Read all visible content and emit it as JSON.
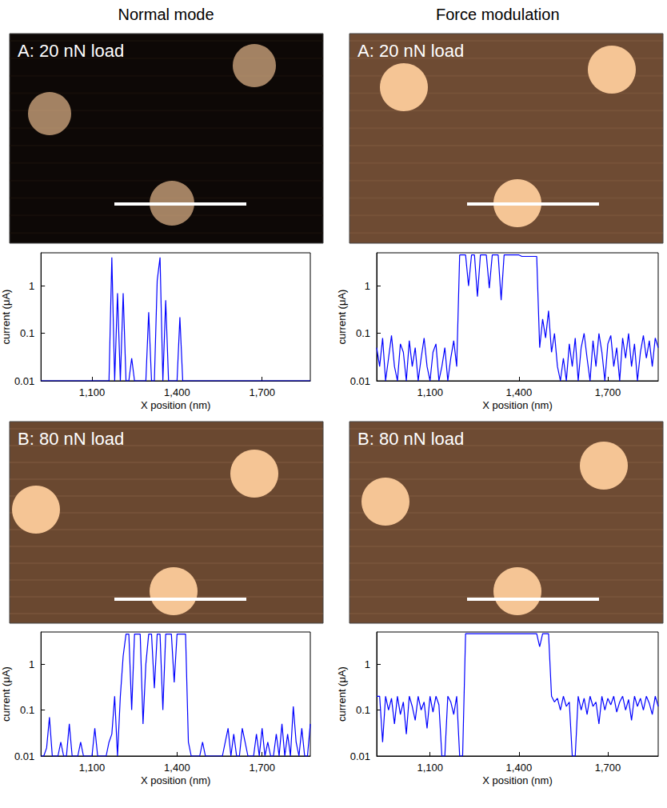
{
  "column_titles": [
    "Normal mode",
    "Force modulation"
  ],
  "chart_data": [
    {
      "type": "line",
      "title": "A: 20 nN load",
      "x_label": "X position (nm)",
      "y_label": "current (μA)",
      "x": [
        920,
        930,
        940,
        950,
        960,
        970,
        980,
        990,
        1000,
        1010,
        1020,
        1030,
        1040,
        1050,
        1060,
        1070,
        1080,
        1090,
        1100,
        1110,
        1120,
        1130,
        1140,
        1150,
        1160,
        1170,
        1180,
        1190,
        1200,
        1210,
        1220,
        1230,
        1240,
        1250,
        1260,
        1270,
        1280,
        1290,
        1300,
        1310,
        1320,
        1330,
        1340,
        1350,
        1360,
        1370,
        1380,
        1390,
        1400,
        1410,
        1420,
        1430,
        1440,
        1450,
        1460,
        1470,
        1480,
        1490,
        1500,
        1510,
        1520,
        1530,
        1540,
        1550,
        1560,
        1570,
        1580,
        1590,
        1600,
        1610,
        1620,
        1630,
        1640,
        1650,
        1660,
        1670,
        1680,
        1690,
        1700,
        1710,
        1720,
        1730,
        1740,
        1750,
        1760,
        1770,
        1780,
        1790,
        1800,
        1810,
        1820,
        1830,
        1840,
        1850,
        1860,
        1870
      ],
      "series": [
        {
          "color": "#0000ff",
          "values": [
            0.01,
            0.01,
            0.01,
            0.01,
            0.01,
            0.01,
            0.01,
            0.01,
            0.01,
            0.01,
            0.01,
            0.01,
            0.01,
            0.01,
            0.01,
            0.01,
            0.01,
            0.01,
            0.01,
            0.01,
            0.01,
            0.01,
            0.01,
            0.01,
            0.01,
            4,
            0.01,
            0.7,
            0.01,
            0.7,
            0.01,
            0.01,
            0.03,
            0.01,
            0.01,
            0.01,
            0.01,
            0.01,
            0.28,
            0.01,
            0.01,
            1.3,
            4,
            0.01,
            0.5,
            0.01,
            0.01,
            0.01,
            0.01,
            0.22,
            0.01,
            0.01,
            0.01,
            0.01,
            0.01,
            0.01,
            0.01,
            0.01,
            0.01,
            0.01,
            0.01,
            0.01,
            0.01,
            0.01,
            0.01,
            0.01,
            0.01,
            0.01,
            0.01,
            0.01,
            0.01,
            0.01,
            0.01,
            0.01,
            0.01,
            0.01,
            0.01,
            0.01,
            0.01,
            0.01,
            0.01,
            0.01,
            0.01,
            0.01,
            0.01,
            0.01,
            0.01,
            0.01,
            0.01,
            0.01,
            0.01,
            0.01,
            0.01,
            0.01,
            0.01,
            0.01
          ]
        }
      ],
      "xlim": [
        920,
        1870
      ],
      "xticks": [
        1100,
        1400,
        1700
      ],
      "ylim": [
        0.01,
        5
      ],
      "yticks": [
        0.01,
        0.1,
        1
      ],
      "log": "y",
      "grid": false
    },
    {
      "type": "line",
      "title": "A: 20 nN load",
      "x_label": "X position (nm)",
      "y_label": "current (μA)",
      "x": [
        920,
        930,
        940,
        950,
        960,
        970,
        980,
        990,
        1000,
        1010,
        1020,
        1030,
        1040,
        1050,
        1060,
        1070,
        1080,
        1090,
        1100,
        1110,
        1120,
        1130,
        1140,
        1150,
        1160,
        1170,
        1180,
        1190,
        1200,
        1210,
        1220,
        1230,
        1240,
        1250,
        1260,
        1270,
        1280,
        1290,
        1300,
        1310,
        1320,
        1330,
        1340,
        1350,
        1360,
        1370,
        1380,
        1390,
        1400,
        1410,
        1420,
        1430,
        1440,
        1450,
        1460,
        1470,
        1480,
        1490,
        1500,
        1510,
        1520,
        1530,
        1540,
        1550,
        1560,
        1570,
        1580,
        1590,
        1600,
        1610,
        1620,
        1630,
        1640,
        1650,
        1660,
        1670,
        1680,
        1690,
        1700,
        1710,
        1720,
        1730,
        1740,
        1750,
        1760,
        1770,
        1780,
        1790,
        1800,
        1810,
        1820,
        1830,
        1840,
        1850,
        1860,
        1870
      ],
      "series": [
        {
          "color": "#0000ff",
          "values": [
            0.05,
            0.02,
            0.08,
            0.01,
            0.03,
            0.09,
            0.02,
            0.01,
            0.06,
            0.04,
            0.01,
            0.07,
            0.02,
            0.05,
            0.01,
            0.03,
            0.08,
            0.02,
            0.01,
            0.04,
            0.06,
            0.01,
            0.02,
            0.05,
            0.01,
            0.03,
            0.07,
            0.02,
            4.5,
            4.5,
            4.5,
            1,
            4.5,
            4.5,
            0.6,
            4.5,
            4.5,
            4.5,
            0.9,
            4.5,
            4.5,
            4.5,
            0.5,
            4.5,
            4.5,
            4.5,
            4.5,
            4.5,
            4.5,
            4.2,
            4.2,
            4.2,
            4.2,
            4.2,
            4.2,
            0.05,
            0.2,
            0.08,
            0.3,
            0.04,
            0.1,
            0.02,
            0.01,
            0.03,
            0.01,
            0.06,
            0.02,
            0.08,
            0.01,
            0.05,
            0.1,
            0.03,
            0.01,
            0.07,
            0.02,
            0.1,
            0.04,
            0.01,
            0.06,
            0.09,
            0.02,
            0.05,
            0.01,
            0.08,
            0.03,
            0.1,
            0.02,
            0.06,
            0.01,
            0.04,
            0.09,
            0.03,
            0.07,
            0.02,
            0.08,
            0.05
          ]
        }
      ],
      "xlim": [
        920,
        1870
      ],
      "xticks": [
        1100,
        1400,
        1700
      ],
      "ylim": [
        0.01,
        5
      ],
      "yticks": [
        0.01,
        0.1,
        1
      ],
      "log": "y",
      "grid": false
    },
    {
      "type": "line",
      "title": "B: 80 nN load",
      "x_label": "X position (nm)",
      "y_label": "current (μA)",
      "x": [
        920,
        930,
        940,
        950,
        960,
        970,
        980,
        990,
        1000,
        1010,
        1020,
        1030,
        1040,
        1050,
        1060,
        1070,
        1080,
        1090,
        1100,
        1110,
        1120,
        1130,
        1140,
        1150,
        1160,
        1170,
        1180,
        1190,
        1200,
        1210,
        1220,
        1230,
        1240,
        1250,
        1260,
        1270,
        1280,
        1290,
        1300,
        1310,
        1320,
        1330,
        1340,
        1350,
        1360,
        1370,
        1380,
        1390,
        1400,
        1410,
        1420,
        1430,
        1440,
        1450,
        1460,
        1470,
        1480,
        1490,
        1500,
        1510,
        1520,
        1530,
        1540,
        1550,
        1560,
        1570,
        1580,
        1590,
        1600,
        1610,
        1620,
        1630,
        1640,
        1650,
        1660,
        1670,
        1680,
        1690,
        1700,
        1710,
        1720,
        1730,
        1740,
        1750,
        1760,
        1770,
        1780,
        1790,
        1800,
        1810,
        1820,
        1830,
        1840,
        1850,
        1860,
        1870
      ],
      "series": [
        {
          "color": "#0000ff",
          "values": [
            0.01,
            0.01,
            0.015,
            0.07,
            0.01,
            0.01,
            0.01,
            0.02,
            0.01,
            0.01,
            0.05,
            0.01,
            0.01,
            0.01,
            0.02,
            0.01,
            0.01,
            0.01,
            0.01,
            0.04,
            0.01,
            0.01,
            0.01,
            0.01,
            0.02,
            0.03,
            0.2,
            0.01,
            0.2,
            1.5,
            4.5,
            4.5,
            0.1,
            4.5,
            4.5,
            4.5,
            0.05,
            1,
            4.5,
            4.5,
            0.3,
            4.5,
            4.5,
            0.1,
            4.5,
            4.5,
            4.5,
            0.4,
            4.5,
            4.5,
            4.5,
            4.5,
            0.02,
            0.01,
            0.01,
            0.01,
            0.01,
            0.02,
            0.01,
            0.01,
            0.01,
            0.01,
            0.01,
            0.01,
            0.01,
            0.02,
            0.04,
            0.01,
            0.03,
            0.01,
            0.01,
            0.04,
            0.02,
            0.01,
            0.01,
            0.01,
            0.03,
            0.01,
            0.04,
            0.01,
            0.02,
            0.01,
            0.01,
            0.03,
            0.01,
            0.05,
            0.01,
            0.03,
            0.01,
            0.12,
            0.02,
            0.01,
            0.04,
            0.01,
            0.01,
            0.05
          ]
        }
      ],
      "xlim": [
        920,
        1870
      ],
      "xticks": [
        1100,
        1400,
        1700
      ],
      "ylim": [
        0.01,
        5
      ],
      "yticks": [
        0.01,
        0.1,
        1
      ],
      "log": "y",
      "grid": false
    },
    {
      "type": "line",
      "title": "B: 80 nN load",
      "x_label": "X position (nm)",
      "y_label": "current (μA)",
      "x": [
        920,
        930,
        940,
        950,
        960,
        970,
        980,
        990,
        1000,
        1010,
        1020,
        1030,
        1040,
        1050,
        1060,
        1070,
        1080,
        1090,
        1100,
        1110,
        1120,
        1130,
        1140,
        1150,
        1160,
        1170,
        1180,
        1190,
        1200,
        1210,
        1220,
        1230,
        1240,
        1250,
        1260,
        1270,
        1280,
        1290,
        1300,
        1310,
        1320,
        1330,
        1340,
        1350,
        1360,
        1370,
        1380,
        1390,
        1400,
        1410,
        1420,
        1430,
        1440,
        1450,
        1460,
        1470,
        1480,
        1490,
        1500,
        1510,
        1520,
        1530,
        1540,
        1550,
        1560,
        1570,
        1580,
        1590,
        1600,
        1610,
        1620,
        1630,
        1640,
        1650,
        1660,
        1670,
        1680,
        1690,
        1700,
        1710,
        1720,
        1730,
        1740,
        1750,
        1760,
        1770,
        1780,
        1790,
        1800,
        1810,
        1820,
        1830,
        1840,
        1850,
        1860,
        1870
      ],
      "series": [
        {
          "color": "#0000ff",
          "values": [
            0.2,
            0.2,
            0.02,
            0.2,
            0.1,
            0.18,
            0.05,
            0.2,
            0.08,
            0.15,
            0.03,
            0.2,
            0.12,
            0.06,
            0.2,
            0.1,
            0.15,
            0.04,
            0.2,
            0.09,
            0.2,
            0.13,
            0.01,
            0.01,
            0.2,
            0.15,
            0.08,
            0.2,
            0.01,
            0.01,
            4.6,
            4.6,
            4.6,
            4.6,
            4.6,
            4.6,
            4.6,
            4.6,
            4.6,
            4.6,
            4.6,
            4.6,
            4.6,
            4.6,
            4.6,
            4.6,
            4.6,
            4.6,
            4.6,
            4.6,
            4.6,
            4.6,
            4.6,
            4.6,
            4.6,
            2.4,
            4.6,
            4.6,
            4.6,
            0.2,
            0.15,
            0.18,
            0.1,
            0.2,
            0.12,
            0.15,
            0.01,
            0.01,
            0.2,
            0.1,
            0.18,
            0.08,
            0.2,
            0.12,
            0.15,
            0.05,
            0.2,
            0.1,
            0.18,
            0.13,
            0.2,
            0.09,
            0.15,
            0.2,
            0.1,
            0.17,
            0.06,
            0.2,
            0.12,
            0.18,
            0.1,
            0.2,
            0.14,
            0.08,
            0.2,
            0.12
          ]
        }
      ],
      "xlim": [
        920,
        1870
      ],
      "xticks": [
        1100,
        1400,
        1700
      ],
      "ylim": [
        0.01,
        5
      ],
      "yticks": [
        0.01,
        0.1,
        1
      ],
      "log": "y",
      "grid": false
    }
  ]
}
